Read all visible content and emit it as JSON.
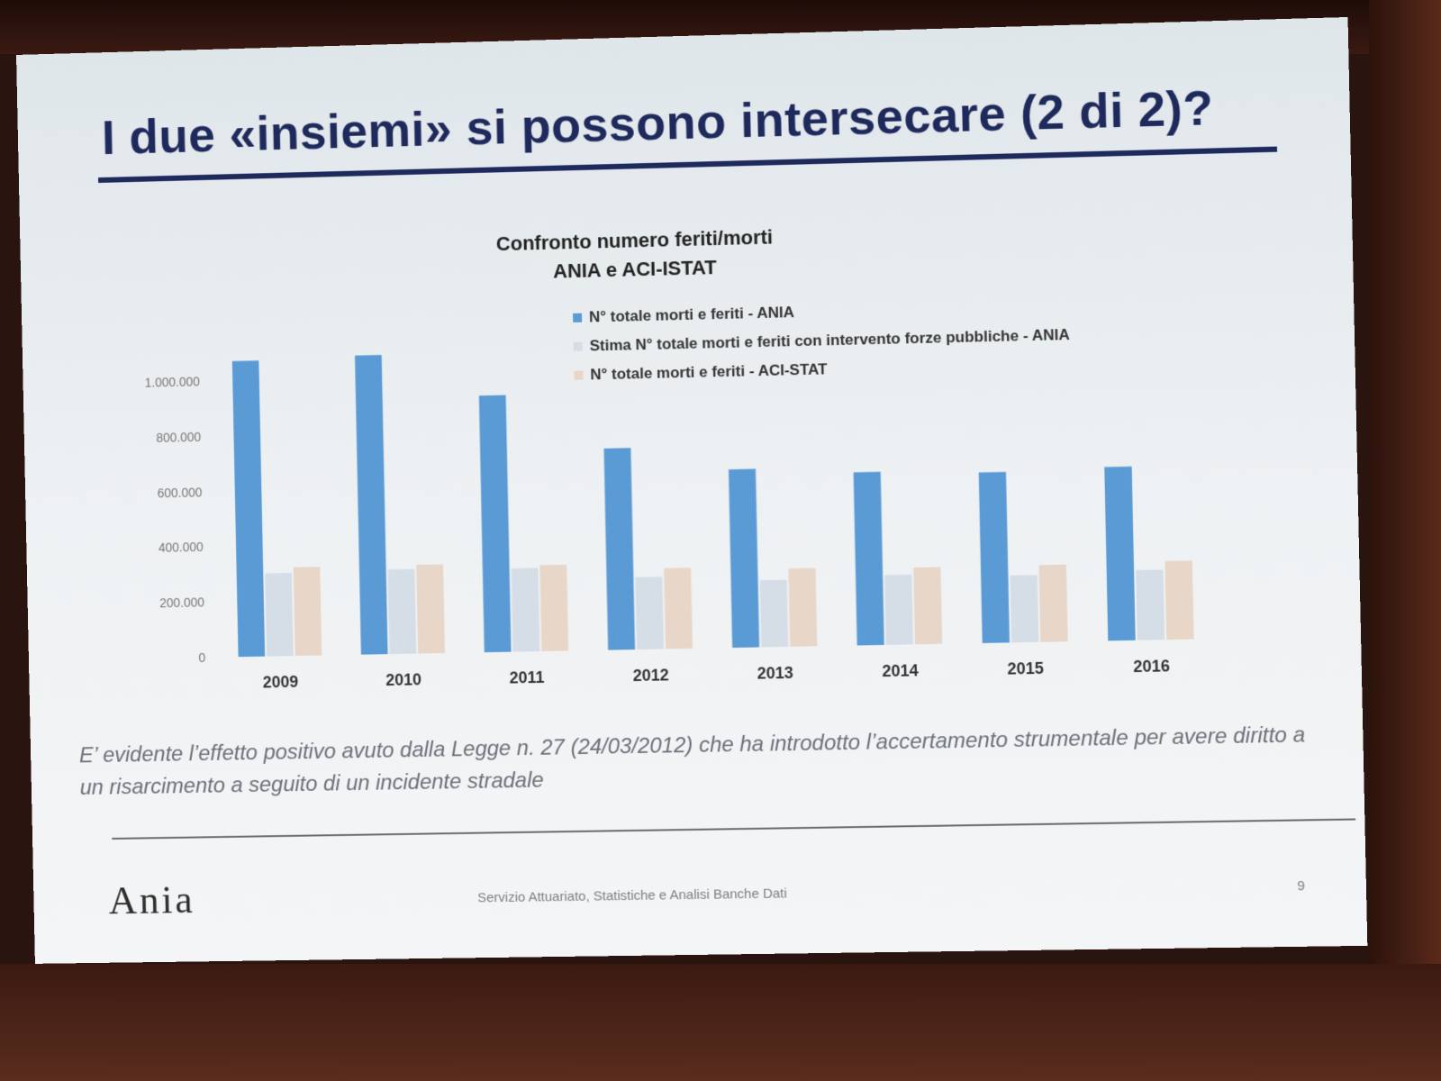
{
  "slide": {
    "title": "I due «insiemi» si possono intersecare (2 di 2)?",
    "note": "E’ evidente l’effetto positivo avuto dalla Legge n. 27 (24/03/2012) che ha introdotto l’accertamento strumentale per avere diritto a un risarcimento a seguito di un incidente stradale",
    "footer": {
      "logo": "Ania",
      "text": "Servizio Attuariato, Statistiche e Analisi Banche Dati",
      "page": "9"
    }
  },
  "chart_data": {
    "type": "bar",
    "title": "Confronto numero feriti/morti",
    "subtitle": "ANIA e ACI-ISTAT",
    "categories": [
      "2009",
      "2010",
      "2011",
      "2012",
      "2013",
      "2014",
      "2015",
      "2016"
    ],
    "yticks": [
      "0",
      "200.000",
      "400.000",
      "600.000",
      "800.000",
      "1.000.000"
    ],
    "ylim": [
      0,
      1100000
    ],
    "grid": false,
    "legend_position": "top-right",
    "series": [
      {
        "name": "N° totale morti e feriti - ANIA",
        "color": "#5b9bd5",
        "values": [
          1070000,
          1080000,
          925000,
          725000,
          640000,
          620000,
          610000,
          620000
        ]
      },
      {
        "name": "Stima N° totale morti e feriti con intervento forze pubbliche - ANIA",
        "color": "#d5dde6",
        "values": [
          300000,
          305000,
          300000,
          260000,
          240000,
          250000,
          240000,
          250000
        ]
      },
      {
        "name": "N° totale morti e feriti - ACI-STAT",
        "color": "#e8d6c8",
        "values": [
          320000,
          320000,
          310000,
          290000,
          280000,
          275000,
          275000,
          280000
        ]
      }
    ]
  }
}
